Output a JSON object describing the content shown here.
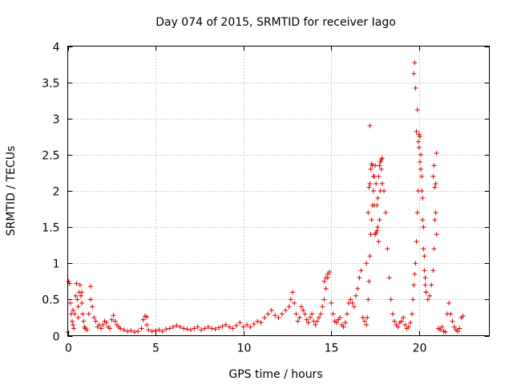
{
  "chart_data": {
    "type": "scatter",
    "title": "Day 074 of 2015, SRMTID for receiver Iago",
    "xlabel": "GPS time / hours",
    "ylabel": "SRMTID / TECUs",
    "xlim": [
      0,
      24
    ],
    "ylim": [
      0,
      4
    ],
    "grid": true,
    "xticks": [
      0,
      5,
      10,
      15,
      20
    ],
    "xtick_labels": [
      "0",
      "5",
      "10",
      "15",
      "20"
    ],
    "yticks": [
      0,
      0.5,
      1,
      1.5,
      2,
      2.5,
      3,
      3.5,
      4
    ],
    "ytick_labels": [
      "0",
      "0.5",
      "1",
      "1.5",
      "2",
      "2.5",
      "3",
      "3.5",
      "4"
    ],
    "marker": "+",
    "marker_color": "#e00000",
    "series": [
      {
        "name": "SRMTID",
        "x": [
          0.0,
          0.05,
          0.1,
          0.15,
          0.2,
          0.25,
          0.3,
          0.35,
          0.4,
          0.45,
          0.5,
          0.55,
          0.6,
          0.65,
          0.7,
          0.75,
          0.8,
          0.85,
          0.9,
          0.95,
          1.0,
          1.1,
          1.2,
          1.3,
          1.4,
          1.5,
          1.6,
          1.7,
          1.8,
          1.9,
          2.0,
          2.1,
          2.2,
          2.3,
          2.4,
          2.5,
          2.6,
          2.7,
          2.8,
          2.9,
          3.0,
          3.2,
          3.4,
          3.6,
          3.8,
          4.0,
          4.2,
          4.3,
          4.4,
          4.5,
          4.6,
          4.8,
          5.0,
          5.2,
          5.4,
          5.6,
          5.8,
          6.0,
          6.2,
          6.4,
          6.6,
          6.8,
          7.0,
          7.2,
          7.4,
          7.6,
          7.8,
          8.0,
          8.2,
          8.4,
          8.6,
          8.8,
          9.0,
          9.2,
          9.4,
          9.6,
          9.8,
          10.0,
          10.2,
          10.4,
          10.6,
          10.8,
          11.0,
          11.2,
          11.4,
          11.6,
          11.8,
          12.0,
          12.2,
          12.4,
          12.6,
          12.7,
          12.8,
          12.9,
          13.0,
          13.1,
          13.2,
          13.3,
          13.4,
          13.5,
          13.6,
          13.7,
          13.8,
          13.9,
          14.0,
          14.1,
          14.2,
          14.3,
          14.4,
          14.5,
          14.6,
          14.7,
          14.8,
          14.9,
          15.0,
          15.1,
          15.2,
          15.3,
          15.4,
          15.5,
          15.6,
          15.7,
          15.8,
          15.9,
          16.0,
          16.1,
          16.2,
          16.3,
          16.4,
          16.5,
          16.6,
          16.7,
          16.8,
          16.9,
          17.0,
          17.05,
          17.1,
          17.15,
          17.2,
          17.25,
          17.3,
          17.35,
          17.4,
          17.45,
          17.5,
          17.55,
          17.6,
          17.65,
          17.7,
          17.75,
          17.8,
          17.85,
          17.9,
          18.0,
          18.1,
          18.2,
          18.3,
          18.4,
          18.5,
          18.6,
          18.7,
          18.8,
          18.9,
          19.0,
          19.1,
          19.2,
          19.3,
          19.4,
          19.5,
          19.6,
          19.65,
          19.7,
          19.75,
          19.8,
          19.85,
          19.9,
          19.95,
          20.0,
          20.05,
          20.1,
          20.15,
          20.2,
          20.25,
          20.3,
          20.35,
          20.4,
          20.5,
          20.6,
          20.7,
          20.8,
          20.85,
          20.9,
          20.95,
          21.0,
          21.1,
          21.2,
          21.3,
          21.4,
          21.5,
          21.6,
          21.7,
          21.8,
          21.9,
          22.0,
          22.1,
          22.2,
          22.3,
          22.4,
          22.5,
          17.0,
          17.1,
          17.15,
          17.2,
          17.25,
          17.3,
          17.35,
          17.4,
          17.45,
          17.5,
          17.55,
          17.6,
          17.65,
          17.7,
          17.75,
          17.8,
          17.85,
          17.9,
          19.7,
          19.75,
          19.8,
          19.85,
          19.9,
          19.95,
          20.0,
          20.05,
          20.1,
          20.15,
          20.2,
          20.25,
          20.3,
          20.35,
          20.4,
          20.8,
          20.85,
          20.9,
          20.95,
          21.0,
          0.3,
          0.6,
          0.8,
          1.3,
          4.5,
          14.6,
          14.7,
          14.8
        ],
        "y": [
          0.05,
          0.75,
          0.72,
          0.45,
          0.3,
          0.2,
          0.15,
          0.1,
          0.3,
          0.55,
          0.72,
          0.5,
          0.4,
          0.6,
          0.7,
          0.55,
          0.45,
          0.3,
          0.2,
          0.12,
          0.1,
          0.08,
          0.3,
          0.5,
          0.4,
          0.25,
          0.2,
          0.12,
          0.15,
          0.1,
          0.15,
          0.2,
          0.18,
          0.12,
          0.1,
          0.22,
          0.28,
          0.2,
          0.15,
          0.12,
          0.1,
          0.08,
          0.06,
          0.07,
          0.05,
          0.06,
          0.1,
          0.22,
          0.27,
          0.15,
          0.08,
          0.06,
          0.07,
          0.08,
          0.06,
          0.09,
          0.1,
          0.12,
          0.14,
          0.12,
          0.1,
          0.09,
          0.08,
          0.1,
          0.12,
          0.08,
          0.1,
          0.12,
          0.1,
          0.09,
          0.11,
          0.13,
          0.15,
          0.12,
          0.1,
          0.14,
          0.18,
          0.12,
          0.15,
          0.12,
          0.16,
          0.2,
          0.18,
          0.25,
          0.3,
          0.35,
          0.28,
          0.25,
          0.3,
          0.35,
          0.4,
          0.5,
          0.6,
          0.45,
          0.3,
          0.2,
          0.25,
          0.4,
          0.35,
          0.3,
          0.22,
          0.18,
          0.25,
          0.3,
          0.2,
          0.15,
          0.2,
          0.25,
          0.3,
          0.4,
          0.5,
          0.65,
          0.8,
          0.88,
          0.45,
          0.3,
          0.2,
          0.18,
          0.22,
          0.25,
          0.15,
          0.12,
          0.18,
          0.3,
          0.45,
          0.5,
          0.45,
          0.4,
          0.55,
          0.65,
          0.8,
          0.9,
          0.25,
          0.2,
          0.15,
          0.25,
          0.5,
          0.75,
          1.1,
          1.4,
          1.6,
          1.8,
          2.0,
          2.2,
          2.35,
          2.1,
          1.8,
          1.5,
          1.3,
          1.6,
          2.0,
          2.3,
          2.45,
          2.0,
          1.7,
          1.2,
          0.8,
          0.5,
          0.3,
          0.2,
          0.15,
          0.12,
          0.18,
          0.2,
          0.25,
          0.15,
          0.1,
          0.12,
          0.18,
          0.3,
          0.5,
          0.7,
          0.85,
          1.0,
          1.3,
          1.7,
          2.0,
          2.6,
          2.75,
          2.5,
          2.2,
          1.9,
          1.5,
          1.1,
          0.8,
          0.6,
          0.5,
          0.55,
          0.7,
          0.9,
          1.2,
          1.6,
          2.1,
          2.52,
          0.1,
          0.08,
          0.12,
          0.06,
          0.05,
          0.3,
          0.45,
          0.3,
          0.2,
          0.12,
          0.08,
          0.06,
          0.1,
          0.25,
          0.27,
          1.0,
          1.7,
          2.05,
          2.1,
          2.3,
          2.37,
          2.35,
          2.2,
          1.8,
          1.4,
          1.42,
          1.45,
          1.9,
          2.2,
          2.35,
          2.4,
          2.43,
          2.1,
          3.62,
          3.77,
          3.42,
          2.82,
          3.12,
          2.68,
          2.78,
          2.4,
          2.3,
          2.0,
          1.6,
          1.2,
          0.9,
          0.7,
          0.6,
          2.2,
          2.35,
          2.05,
          1.7,
          1.4,
          0.35,
          0.25,
          0.6,
          0.68,
          0.26,
          0.75,
          0.8,
          0.85
        ],
        "extra_points": {
          "x": [
            17.2
          ],
          "y": [
            2.9
          ]
        }
      }
    ]
  }
}
